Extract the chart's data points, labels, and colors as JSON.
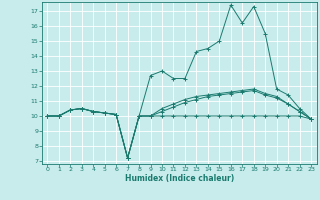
{
  "title": "",
  "xlabel": "Humidex (Indice chaleur)",
  "ylabel": "",
  "bg_color": "#c8ecec",
  "grid_color": "#ffffff",
  "line_color": "#1a7a6e",
  "xlim": [
    -0.5,
    23.5
  ],
  "ylim": [
    6.8,
    17.6
  ],
  "yticks": [
    7,
    8,
    9,
    10,
    11,
    12,
    13,
    14,
    15,
    16,
    17
  ],
  "xticks": [
    0,
    1,
    2,
    3,
    4,
    5,
    6,
    7,
    8,
    9,
    10,
    11,
    12,
    13,
    14,
    15,
    16,
    17,
    18,
    19,
    20,
    21,
    22,
    23
  ],
  "series1": [
    [
      0,
      10
    ],
    [
      1,
      10
    ],
    [
      2,
      10.4
    ],
    [
      3,
      10.5
    ],
    [
      4,
      10.3
    ],
    [
      5,
      10.2
    ],
    [
      6,
      10.1
    ],
    [
      7,
      7.2
    ],
    [
      8,
      10.0
    ],
    [
      9,
      10.0
    ],
    [
      10,
      10.0
    ],
    [
      11,
      10.0
    ],
    [
      12,
      10.0
    ],
    [
      13,
      10.0
    ],
    [
      14,
      10.0
    ],
    [
      15,
      10.0
    ],
    [
      16,
      10.0
    ],
    [
      17,
      10.0
    ],
    [
      18,
      10.0
    ],
    [
      19,
      10.0
    ],
    [
      20,
      10.0
    ],
    [
      21,
      10.0
    ],
    [
      22,
      10.0
    ],
    [
      23,
      9.8
    ]
  ],
  "series2": [
    [
      0,
      10
    ],
    [
      1,
      10
    ],
    [
      2,
      10.4
    ],
    [
      3,
      10.5
    ],
    [
      4,
      10.3
    ],
    [
      5,
      10.2
    ],
    [
      6,
      10.1
    ],
    [
      7,
      7.2
    ],
    [
      8,
      10.0
    ],
    [
      9,
      12.7
    ],
    [
      10,
      13.0
    ],
    [
      11,
      12.5
    ],
    [
      12,
      12.5
    ],
    [
      13,
      14.3
    ],
    [
      14,
      14.5
    ],
    [
      15,
      15.0
    ],
    [
      16,
      17.4
    ],
    [
      17,
      16.2
    ],
    [
      18,
      17.3
    ],
    [
      19,
      15.5
    ],
    [
      20,
      11.8
    ],
    [
      21,
      11.4
    ],
    [
      22,
      10.5
    ],
    [
      23,
      9.8
    ]
  ],
  "series3": [
    [
      0,
      10
    ],
    [
      1,
      10
    ],
    [
      2,
      10.4
    ],
    [
      3,
      10.5
    ],
    [
      4,
      10.3
    ],
    [
      5,
      10.2
    ],
    [
      6,
      10.1
    ],
    [
      7,
      7.2
    ],
    [
      8,
      10.0
    ],
    [
      9,
      10.0
    ],
    [
      10,
      10.5
    ],
    [
      11,
      10.8
    ],
    [
      12,
      11.1
    ],
    [
      13,
      11.3
    ],
    [
      14,
      11.4
    ],
    [
      15,
      11.5
    ],
    [
      16,
      11.6
    ],
    [
      17,
      11.7
    ],
    [
      18,
      11.8
    ],
    [
      19,
      11.5
    ],
    [
      20,
      11.3
    ],
    [
      21,
      10.8
    ],
    [
      22,
      10.3
    ],
    [
      23,
      9.8
    ]
  ],
  "series4": [
    [
      0,
      10
    ],
    [
      1,
      10
    ],
    [
      2,
      10.4
    ],
    [
      3,
      10.5
    ],
    [
      4,
      10.3
    ],
    [
      5,
      10.2
    ],
    [
      6,
      10.1
    ],
    [
      7,
      7.2
    ],
    [
      8,
      10.0
    ],
    [
      9,
      10.0
    ],
    [
      10,
      10.3
    ],
    [
      11,
      10.6
    ],
    [
      12,
      10.9
    ],
    [
      13,
      11.1
    ],
    [
      14,
      11.3
    ],
    [
      15,
      11.4
    ],
    [
      16,
      11.5
    ],
    [
      17,
      11.6
    ],
    [
      18,
      11.7
    ],
    [
      19,
      11.4
    ],
    [
      20,
      11.2
    ],
    [
      21,
      10.8
    ],
    [
      22,
      10.3
    ],
    [
      23,
      9.8
    ]
  ]
}
